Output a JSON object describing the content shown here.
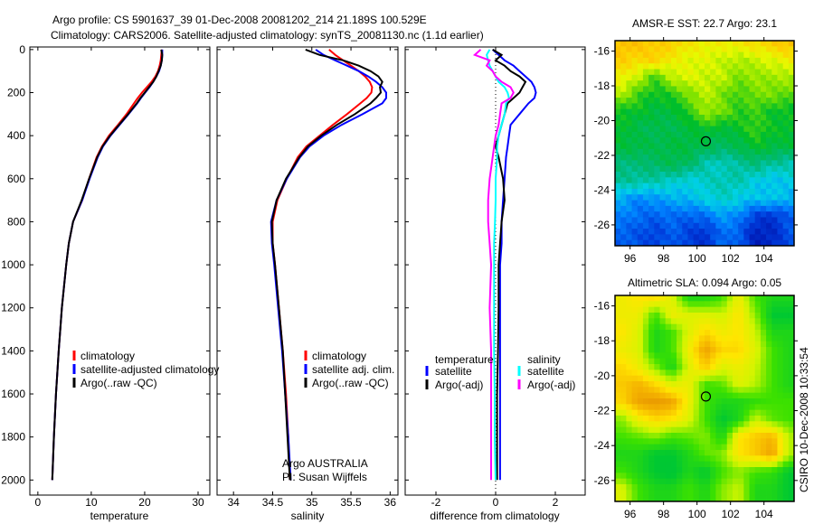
{
  "title": {
    "line1": "Argo profile: CS 5901637_39 01-Dec-2008 20081202_214 21.189S 100.529E",
    "line2": "Climatology: CARS2006. Satellite-adjusted climatology: synTS_20081130.nc (1.1d earlier)"
  },
  "credit": "CSIRO 10-Dec-2008 10:33:54",
  "attribution": {
    "line1": "Argo AUSTRALIA",
    "line2": "PI: Susan Wijffels"
  },
  "colors": {
    "climatology": "#ff0000",
    "satellite": "#0000ff",
    "argo": "#000000",
    "sal_satellite": "#00ffff",
    "sal_argo": "#ff00ff"
  },
  "chart_data": [
    {
      "type": "line",
      "id": "temperature",
      "xlabel": "temperature",
      "ylabel": "",
      "xlim": [
        -1.5,
        32.2
      ],
      "ylim": [
        2070,
        -12
      ],
      "xticks": [
        0,
        10,
        20,
        30
      ],
      "yticks": [
        0,
        200,
        400,
        600,
        800,
        1000,
        1200,
        1400,
        1600,
        1800,
        2000
      ],
      "depth": [
        0,
        25,
        50,
        75,
        100,
        125,
        150,
        175,
        200,
        225,
        250,
        300,
        350,
        400,
        450,
        500,
        600,
        700,
        800,
        900,
        1000,
        1200,
        1400,
        1600,
        1800,
        2000
      ],
      "legend": [
        "climatology",
        "satellite-adjusted climatology",
        "Argo(..raw -QC)"
      ],
      "series": [
        {
          "name": "climatology",
          "color": "#ff0000",
          "values": [
            23.2,
            23.1,
            23.0,
            22.8,
            22.5,
            22.0,
            21.3,
            20.4,
            19.5,
            18.7,
            18.0,
            16.6,
            15.0,
            13.3,
            12.0,
            11.0,
            9.6,
            8.3,
            6.6,
            5.8,
            5.3,
            4.5,
            3.9,
            3.4,
            3.0,
            2.7
          ]
        },
        {
          "name": "satellite-adjusted climatology",
          "color": "#0000ff",
          "values": [
            23.3,
            23.3,
            23.2,
            23.0,
            22.7,
            22.2,
            21.6,
            20.9,
            20.1,
            19.3,
            18.6,
            17.0,
            15.3,
            13.6,
            12.2,
            11.2,
            9.7,
            8.3,
            6.6,
            5.8,
            5.3,
            4.5,
            3.9,
            3.4,
            3.0,
            2.7
          ]
        },
        {
          "name": "Argo(..raw -QC)",
          "color": "#000000",
          "values": [
            23.1,
            23.3,
            23.2,
            23.0,
            22.6,
            22.2,
            21.6,
            20.8,
            20.0,
            19.2,
            18.5,
            16.9,
            15.2,
            13.5,
            12.1,
            11.1,
            9.6,
            8.2,
            6.6,
            5.8,
            5.3,
            4.5,
            3.9,
            3.4,
            3.0,
            2.7
          ]
        }
      ]
    },
    {
      "type": "line",
      "id": "salinity",
      "xlabel": "salinity",
      "xlim": [
        33.79,
        36.1
      ],
      "ylim": [
        2070,
        -12
      ],
      "xticks": [
        34,
        34.5,
        35,
        35.5,
        36
      ],
      "xticklabels": [
        "34",
        "34.5",
        "35",
        "35.5",
        "36"
      ],
      "depth": [
        0,
        25,
        50,
        75,
        100,
        125,
        150,
        175,
        200,
        225,
        250,
        300,
        350,
        400,
        450,
        500,
        600,
        700,
        800,
        900,
        1000,
        1200,
        1400,
        1600,
        1800,
        2000
      ],
      "legend": [
        "climatology",
        "satellite adj. clim.",
        "Argo(..raw -QC)"
      ],
      "series": [
        {
          "name": "climatology",
          "color": "#ff0000",
          "values": [
            35.22,
            35.3,
            35.4,
            35.5,
            35.6,
            35.68,
            35.74,
            35.77,
            35.76,
            35.7,
            35.62,
            35.45,
            35.27,
            35.1,
            34.93,
            34.82,
            34.68,
            34.56,
            34.5,
            34.5,
            34.53,
            34.58,
            34.63,
            34.67,
            34.7,
            34.72
          ]
        },
        {
          "name": "satellite adj. clim.",
          "color": "#0000ff",
          "values": [
            35.05,
            35.15,
            35.3,
            35.45,
            35.6,
            35.72,
            35.82,
            35.9,
            35.95,
            35.95,
            35.9,
            35.65,
            35.38,
            35.15,
            34.97,
            34.85,
            34.68,
            34.55,
            34.48,
            34.49,
            34.52,
            34.57,
            34.62,
            34.66,
            34.7,
            34.73
          ]
        },
        {
          "name": "Argo(..raw -QC)",
          "color": "#000000",
          "values": [
            34.92,
            35.1,
            35.4,
            35.6,
            35.75,
            35.85,
            35.9,
            35.87,
            35.88,
            35.82,
            35.75,
            35.55,
            35.32,
            35.12,
            34.95,
            34.84,
            34.67,
            34.55,
            34.49,
            34.5,
            34.53,
            34.58,
            34.63,
            34.66,
            34.69,
            34.72
          ]
        }
      ]
    },
    {
      "type": "line",
      "id": "difference",
      "xlabel": "difference from climatology",
      "xlim": [
        -3.03,
        3.0
      ],
      "ylim": [
        2070,
        -12
      ],
      "xticks": [
        -2,
        0,
        2
      ],
      "depth": [
        0,
        25,
        50,
        75,
        100,
        125,
        150,
        175,
        200,
        225,
        250,
        300,
        350,
        400,
        450,
        500,
        600,
        700,
        800,
        900,
        1000,
        1200,
        1400,
        1600,
        1800,
        2000
      ],
      "legend_headers": [
        "temperature",
        "salinity"
      ],
      "legend": [
        "satellite",
        "Argo(-adj)",
        "satellite",
        "Argo(-adj)"
      ],
      "series": [
        {
          "name": "temperature satellite",
          "color": "#0000ff",
          "values": [
            -0.1,
            0.1,
            0.3,
            0.6,
            0.8,
            1.0,
            1.2,
            1.3,
            1.35,
            1.3,
            1.1,
            0.8,
            0.5,
            0.45,
            0.4,
            0.35,
            0.3,
            0.25,
            0.2,
            0.2,
            0.15,
            0.15,
            0.15,
            0.15,
            0.15,
            0.15
          ]
        },
        {
          "name": "temperature Argo(-adj)",
          "color": "#000000",
          "values": [
            -0.1,
            0.2,
            0.0,
            0.3,
            0.5,
            0.8,
            1.0,
            0.9,
            0.8,
            0.6,
            0.4,
            0.3,
            0.2,
            0.1,
            0.0,
            0.1,
            0.25,
            0.3,
            0.2,
            0.15,
            0.1,
            0.1,
            0.08,
            0.05,
            0.05,
            0.05
          ]
        },
        {
          "name": "salinity satellite",
          "color": "#00ffff",
          "values": [
            -0.2,
            -0.3,
            -0.25,
            -0.2,
            -0.1,
            0.0,
            0.1,
            0.3,
            0.4,
            0.45,
            0.35,
            0.3,
            0.2,
            0.1,
            0.05,
            0.05,
            0.0,
            0.0,
            -0.02,
            -0.05,
            -0.05,
            -0.05,
            -0.05,
            -0.03,
            -0.03,
            0.0
          ]
        },
        {
          "name": "salinity Argo(-adj)",
          "color": "#ff00ff",
          "values": [
            -0.5,
            -0.7,
            -0.2,
            -0.3,
            -0.1,
            0.0,
            0.2,
            0.5,
            0.6,
            0.5,
            0.2,
            0.15,
            0.1,
            0.0,
            -0.05,
            -0.1,
            -0.2,
            -0.25,
            -0.25,
            -0.2,
            -0.15,
            -0.2,
            -0.15,
            -0.15,
            -0.15,
            -0.15
          ]
        }
      ]
    },
    {
      "type": "heatmap",
      "id": "sst",
      "title": "AMSR-E SST: 22.7 Argo: 23.1",
      "xlim": [
        95.1,
        105.8
      ],
      "ylim": [
        -27.2,
        -15.4
      ],
      "xticks": [
        96,
        98,
        100,
        102,
        104
      ],
      "yticks": [
        -16,
        -18,
        -20,
        -22,
        -24,
        -26
      ],
      "marker": {
        "lon": 100.529,
        "lat": -21.189
      },
      "colormap": "sst",
      "grid_lat": [
        -15.5,
        -16.5,
        -17.5,
        -18.5,
        -19.5,
        -20.5,
        -21.5,
        -22.5,
        -23.5,
        -24.5,
        -25.5,
        -26.5
      ],
      "grid_lon": [
        95.5,
        96.5,
        97.5,
        98.5,
        99.5,
        100.5,
        101.5,
        102.5,
        103.5,
        104.5,
        105.5
      ],
      "values": [
        [
          0.88,
          0.88,
          0.85,
          0.85,
          0.8,
          0.78,
          0.78,
          0.8,
          0.82,
          0.85,
          0.88
        ],
        [
          0.85,
          0.82,
          0.85,
          0.78,
          0.75,
          0.75,
          0.72,
          0.7,
          0.72,
          0.75,
          0.78
        ],
        [
          0.78,
          0.72,
          0.6,
          0.72,
          0.75,
          0.72,
          0.72,
          0.65,
          0.68,
          0.68,
          0.7
        ],
        [
          0.7,
          0.6,
          0.55,
          0.58,
          0.65,
          0.72,
          0.65,
          0.6,
          0.65,
          0.65,
          0.62
        ],
        [
          0.55,
          0.55,
          0.52,
          0.52,
          0.58,
          0.68,
          0.65,
          0.58,
          0.6,
          0.55,
          0.55
        ],
        [
          0.55,
          0.5,
          0.5,
          0.5,
          0.52,
          0.55,
          0.52,
          0.55,
          0.6,
          0.55,
          0.55
        ],
        [
          0.52,
          0.52,
          0.5,
          0.52,
          0.52,
          0.5,
          0.48,
          0.5,
          0.55,
          0.52,
          0.52
        ],
        [
          0.45,
          0.45,
          0.48,
          0.5,
          0.48,
          0.4,
          0.38,
          0.42,
          0.45,
          0.42,
          0.4
        ],
        [
          0.42,
          0.42,
          0.4,
          0.38,
          0.35,
          0.38,
          0.4,
          0.4,
          0.35,
          0.32,
          0.35
        ],
        [
          0.3,
          0.25,
          0.28,
          0.3,
          0.32,
          0.35,
          0.38,
          0.35,
          0.32,
          0.35,
          0.3
        ],
        [
          0.25,
          0.22,
          0.2,
          0.22,
          0.2,
          0.22,
          0.28,
          0.25,
          0.15,
          0.12,
          0.2
        ],
        [
          0.2,
          0.18,
          0.15,
          0.2,
          0.15,
          0.12,
          0.22,
          0.2,
          0.08,
          0.1,
          0.18
        ]
      ]
    },
    {
      "type": "heatmap",
      "id": "sla",
      "title": "Altimetric SLA: 0.094 Argo: 0.05",
      "xlim": [
        95.1,
        105.8
      ],
      "ylim": [
        -27.2,
        -15.4
      ],
      "xticks": [
        96,
        98,
        100,
        102,
        104
      ],
      "yticks": [
        -16,
        -18,
        -20,
        -22,
        -24,
        -26
      ],
      "marker": {
        "lon": 100.529,
        "lat": -21.189
      },
      "colormap": "sla",
      "grid_lat": [
        -15.5,
        -16.5,
        -17.5,
        -18.5,
        -19.5,
        -20.5,
        -21.5,
        -22.5,
        -23.5,
        -24.5,
        -25.5,
        -26.5
      ],
      "grid_lon": [
        95.5,
        96.5,
        97.5,
        98.5,
        99.5,
        100.5,
        101.5,
        102.5,
        103.5,
        104.5,
        105.5
      ],
      "values": [
        [
          0.75,
          0.78,
          0.8,
          0.72,
          0.55,
          0.55,
          0.6,
          0.75,
          0.6,
          0.55,
          0.55
        ],
        [
          0.75,
          0.75,
          0.6,
          0.75,
          0.72,
          0.72,
          0.7,
          0.78,
          0.65,
          0.5,
          0.5
        ],
        [
          0.78,
          0.72,
          0.55,
          0.6,
          0.72,
          0.8,
          0.75,
          0.78,
          0.7,
          0.55,
          0.55
        ],
        [
          0.75,
          0.72,
          0.55,
          0.6,
          0.75,
          0.88,
          0.8,
          0.8,
          0.72,
          0.6,
          0.55
        ],
        [
          0.8,
          0.75,
          0.65,
          0.55,
          0.72,
          0.82,
          0.72,
          0.75,
          0.7,
          0.6,
          0.55
        ],
        [
          0.82,
          0.85,
          0.8,
          0.72,
          0.75,
          0.6,
          0.62,
          0.72,
          0.68,
          0.6,
          0.55
        ],
        [
          0.8,
          0.88,
          0.9,
          0.88,
          0.75,
          0.6,
          0.55,
          0.55,
          0.58,
          0.6,
          0.6
        ],
        [
          0.65,
          0.75,
          0.8,
          0.78,
          0.72,
          0.6,
          0.5,
          0.55,
          0.7,
          0.62,
          0.6
        ],
        [
          0.6,
          0.62,
          0.65,
          0.6,
          0.62,
          0.65,
          0.55,
          0.78,
          0.82,
          0.85,
          0.68
        ],
        [
          0.55,
          0.55,
          0.5,
          0.5,
          0.55,
          0.62,
          0.65,
          0.78,
          0.82,
          0.88,
          0.68
        ],
        [
          0.6,
          0.55,
          0.5,
          0.48,
          0.55,
          0.5,
          0.6,
          0.65,
          0.6,
          0.58,
          0.5
        ],
        [
          0.72,
          0.6,
          0.55,
          0.55,
          0.6,
          0.55,
          0.65,
          0.7,
          0.55,
          0.55,
          0.5
        ]
      ]
    }
  ]
}
